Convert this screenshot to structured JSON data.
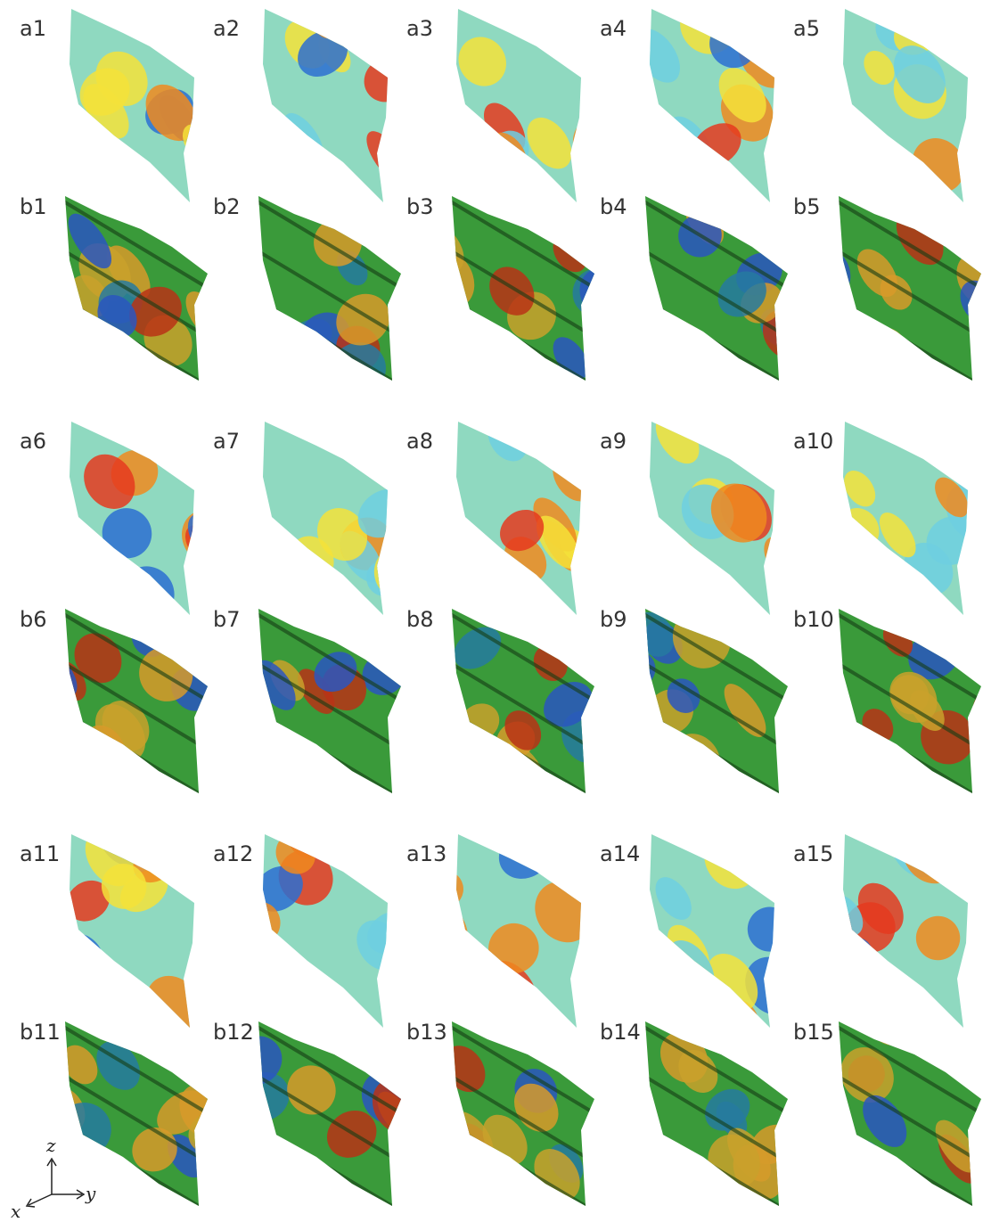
{
  "groups": [
    {
      "top": [
        "a1",
        "a2",
        "a3",
        "a4",
        "a5"
      ],
      "bottom": [
        "b1",
        "b2",
        "b3",
        "b4",
        "b5"
      ]
    },
    {
      "top": [
        "a6",
        "a7",
        "a8",
        "a9",
        "a10"
      ],
      "bottom": [
        "b6",
        "b7",
        "b8",
        "b9",
        "b10"
      ]
    },
    {
      "top": [
        "a11",
        "a12",
        "a13",
        "a14",
        "a15"
      ],
      "bottom": [
        "b11",
        "b12",
        "b13",
        "b14",
        "b15"
      ]
    }
  ],
  "axes": {
    "z": "z",
    "x": "x",
    "y": "y"
  }
}
